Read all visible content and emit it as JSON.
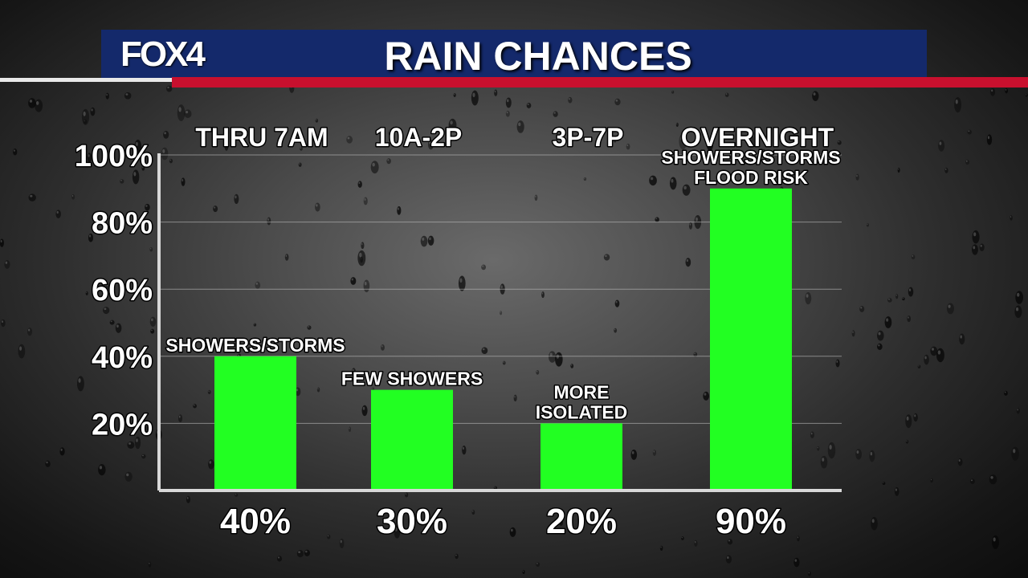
{
  "header": {
    "logo_text": "FOX4",
    "title": "RAIN CHANCES"
  },
  "colors": {
    "banner": "#14296b",
    "accent_red": "#c8102e",
    "bar_green": "#22ff22"
  },
  "chart_data": {
    "type": "bar",
    "title": "RAIN CHANCES",
    "categories": [
      "THRU 7AM",
      "10A-2P",
      "3P-7P",
      "OVERNIGHT"
    ],
    "values": [
      40,
      30,
      20,
      90
    ],
    "value_labels": [
      "40%",
      "30%",
      "20%",
      "90%"
    ],
    "annotations": [
      [
        "SHOWERS/STORMS"
      ],
      [
        "FEW SHOWERS"
      ],
      [
        "MORE",
        "ISOLATED"
      ],
      [
        "SHOWERS/STORMS",
        "FLOOD RISK"
      ]
    ],
    "yticks": [
      20,
      40,
      60,
      80,
      100
    ],
    "ytick_labels": [
      "20%",
      "40%",
      "60%",
      "80%",
      "100%"
    ],
    "ylim": [
      0,
      100
    ],
    "grid": true,
    "xlabel": "",
    "ylabel": ""
  }
}
